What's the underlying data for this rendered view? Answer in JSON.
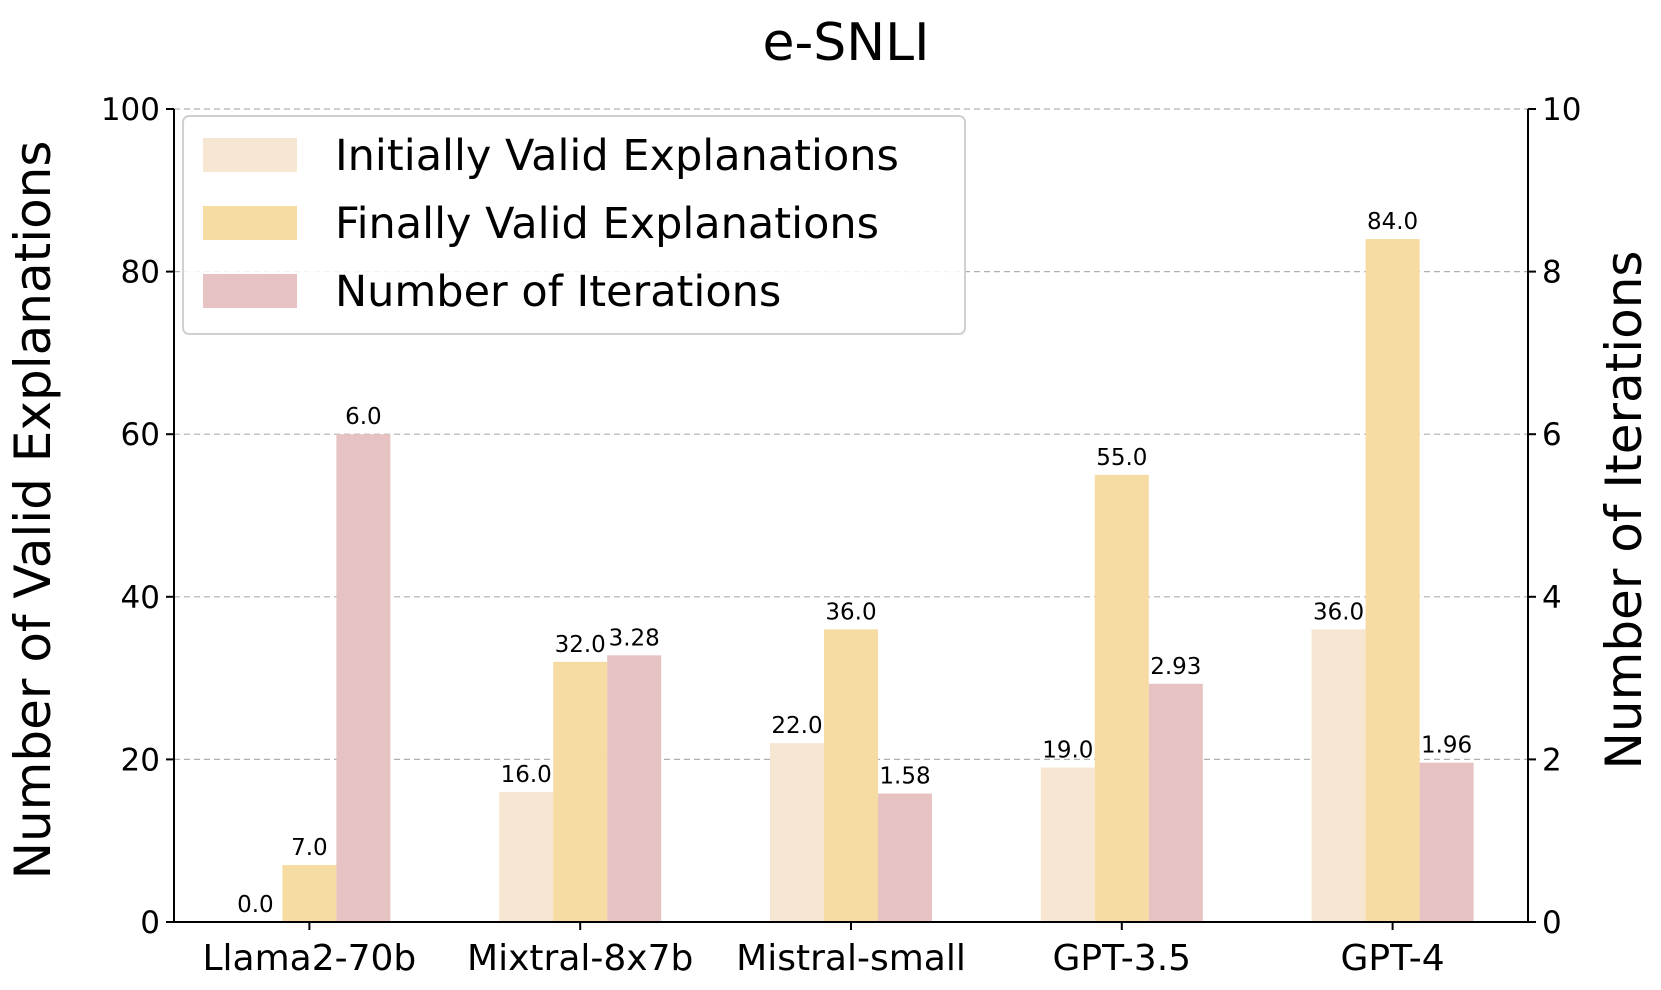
{
  "chart_data": {
    "type": "bar",
    "title": "e-SNLI",
    "categories": [
      "Llama2-70b",
      "Mixtral-8x7b",
      "Mistral-small",
      "GPT-3.5",
      "GPT-4"
    ],
    "ylabel": "Number of Valid Explanations",
    "ylabel_right": "Number of Iterations",
    "ylim": [
      0,
      100
    ],
    "ylim_right": [
      0,
      10
    ],
    "yticks": [
      "0",
      "20",
      "40",
      "60",
      "80",
      "100"
    ],
    "yticks_right": [
      "0",
      "2",
      "4",
      "6",
      "8",
      "10"
    ],
    "grid": true,
    "legend_position": "top-left",
    "series": [
      {
        "name": "Initially Valid Explanations",
        "axis": "left",
        "color": "#f7e6d2",
        "values": [
          0.0,
          16.0,
          22.0,
          19.0,
          36.0
        ],
        "labels": [
          "0.0",
          "16.0",
          "22.0",
          "19.0",
          "36.0"
        ]
      },
      {
        "name": "Finally Valid Explanations",
        "axis": "left",
        "color": "#f6dca2",
        "values": [
          7.0,
          32.0,
          36.0,
          55.0,
          84.0
        ],
        "labels": [
          "7.0",
          "32.0",
          "36.0",
          "55.0",
          "84.0"
        ]
      },
      {
        "name": "Number of Iterations",
        "axis": "right",
        "color": "#e6c2c2",
        "values": [
          6.0,
          3.28,
          1.58,
          2.93,
          1.96
        ],
        "labels": [
          "6.0",
          "3.28",
          "1.58",
          "2.93",
          "1.96"
        ]
      }
    ]
  }
}
